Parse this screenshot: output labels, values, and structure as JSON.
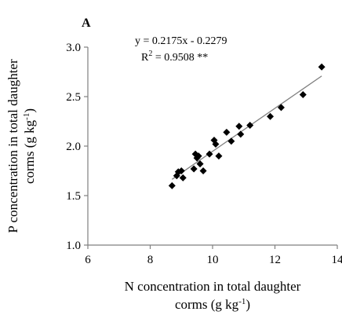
{
  "chart_data": {
    "type": "scatter",
    "panel_label": "A",
    "xlabel_line1": "N concentration in total daughter",
    "xlabel_line2_prefix": "corms (g kg",
    "xlabel_sup": "-1",
    "xlabel_suffix": ")",
    "ylabel_line1": "P concentration in total daughter",
    "ylabel_line2_prefix": "corms (g kg",
    "ylabel_sup": "-1",
    "ylabel_suffix": ")",
    "xlim": [
      6,
      14
    ],
    "ylim": [
      1.0,
      3.0
    ],
    "xticks": [
      "6",
      "8",
      "10",
      "12",
      "14"
    ],
    "yticks": [
      "1.0",
      "1.5",
      "2.0",
      "2.5",
      "3.0"
    ],
    "equation": "y = 0.2175x - 0.2279",
    "r_squared_prefix": "R",
    "r_squared_sup": "2",
    "r_squared_suffix": " = 0.9508 **",
    "trendline": {
      "slope": 0.2175,
      "intercept": -0.2279,
      "x_range": [
        8.7,
        13.5
      ]
    },
    "points": [
      {
        "x": 8.7,
        "y": 1.6
      },
      {
        "x": 8.85,
        "y": 1.7
      },
      {
        "x": 8.9,
        "y": 1.74
      },
      {
        "x": 9.0,
        "y": 1.75
      },
      {
        "x": 9.05,
        "y": 1.68
      },
      {
        "x": 9.4,
        "y": 1.77
      },
      {
        "x": 9.45,
        "y": 1.92
      },
      {
        "x": 9.5,
        "y": 1.88
      },
      {
        "x": 9.55,
        "y": 1.9
      },
      {
        "x": 9.6,
        "y": 1.82
      },
      {
        "x": 9.7,
        "y": 1.75
      },
      {
        "x": 9.9,
        "y": 1.92
      },
      {
        "x": 10.05,
        "y": 2.06
      },
      {
        "x": 10.1,
        "y": 2.02
      },
      {
        "x": 10.2,
        "y": 1.9
      },
      {
        "x": 10.45,
        "y": 2.14
      },
      {
        "x": 10.6,
        "y": 2.05
      },
      {
        "x": 10.85,
        "y": 2.2
      },
      {
        "x": 10.9,
        "y": 2.12
      },
      {
        "x": 11.2,
        "y": 2.21
      },
      {
        "x": 11.85,
        "y": 2.3
      },
      {
        "x": 12.2,
        "y": 2.39
      },
      {
        "x": 12.9,
        "y": 2.52
      },
      {
        "x": 13.5,
        "y": 2.8
      }
    ],
    "grid": false,
    "legend": "none",
    "colors": {
      "marker": "#000000",
      "trendline": "#7f7f7f",
      "axis": "#808080"
    }
  }
}
